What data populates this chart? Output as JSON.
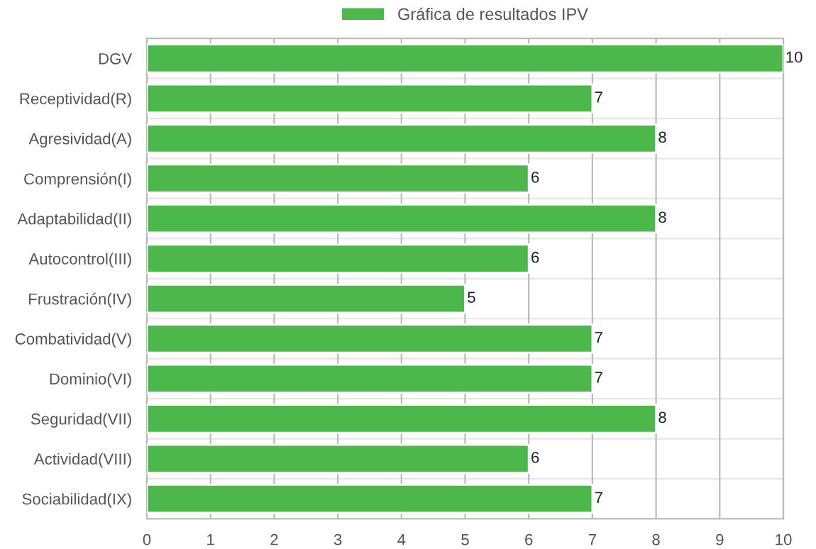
{
  "chart_data": {
    "type": "bar",
    "orientation": "horizontal",
    "categories": [
      "DGV",
      "Receptividad(R)",
      "Agresividad(A)",
      "Comprensión(I)",
      "Adaptabilidad(II)",
      "Autocontrol(III)",
      "Frustración(IV)",
      "Combatividad(V)",
      "Dominio(VI)",
      "Seguridad(VII)",
      "Actividad(VIII)",
      "Sociabilidad(IX)"
    ],
    "series": [
      {
        "name": "Gráfica de resultados IPV",
        "color": "#4cb84c",
        "values": [
          10,
          7,
          8,
          6,
          8,
          6,
          5,
          7,
          7,
          8,
          6,
          7
        ]
      }
    ],
    "xlim": [
      0,
      10
    ],
    "xticks": [
      0,
      1,
      2,
      3,
      4,
      5,
      6,
      7,
      8,
      9,
      10
    ],
    "grid": true,
    "legend": "top",
    "data_labels": true
  }
}
